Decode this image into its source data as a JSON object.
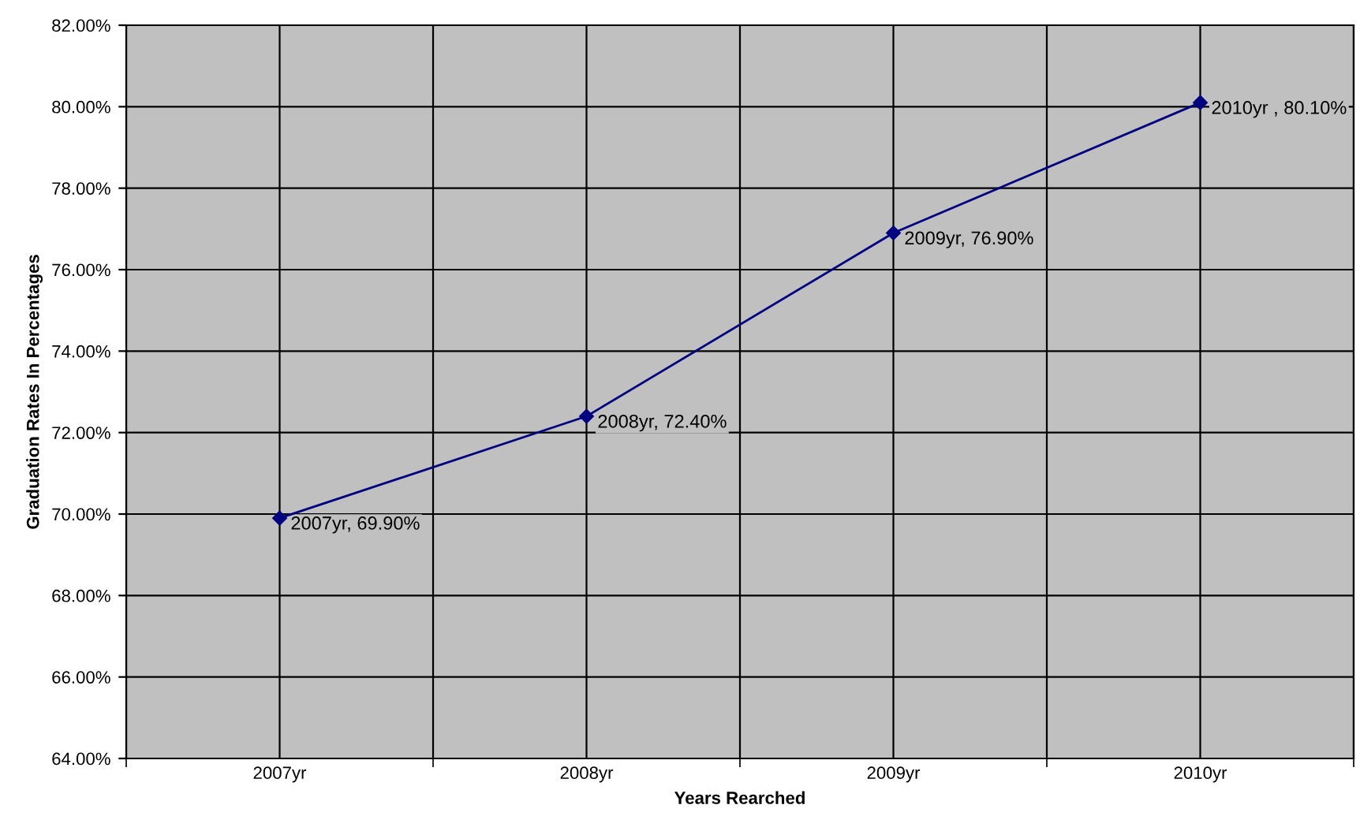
{
  "chart_data": {
    "type": "line",
    "xlabel": "Years Rearched",
    "ylabel": "Graduation Rates In Percentages",
    "categories": [
      "2007yr",
      "2008yr",
      "2009yr",
      "2010yr"
    ],
    "series": [
      {
        "color": "#000080",
        "values": [
          69.9,
          72.4,
          76.9,
          80.1
        ],
        "value_labels": [
          "2007yr, 69.90%",
          "2008yr, 72.40%",
          "2009yr, 76.90%",
          "2010yr , 80.10%"
        ]
      }
    ],
    "ylim": [
      64,
      82
    ],
    "yticks": [
      {
        "value": 64,
        "label": "64.00%"
      },
      {
        "value": 66,
        "label": "66.00%"
      },
      {
        "value": 68,
        "label": "68.00%"
      },
      {
        "value": 70,
        "label": "70.00%"
      },
      {
        "value": 72,
        "label": "72.00%"
      },
      {
        "value": 74,
        "label": "74.00%"
      },
      {
        "value": 76,
        "label": "76.00%"
      },
      {
        "value": 78,
        "label": "78.00%"
      },
      {
        "value": 80,
        "label": "80.00%"
      },
      {
        "value": 82,
        "label": "82.00%"
      }
    ],
    "grid": true,
    "legend": false,
    "marker": "diamond",
    "line_style": "solid"
  }
}
